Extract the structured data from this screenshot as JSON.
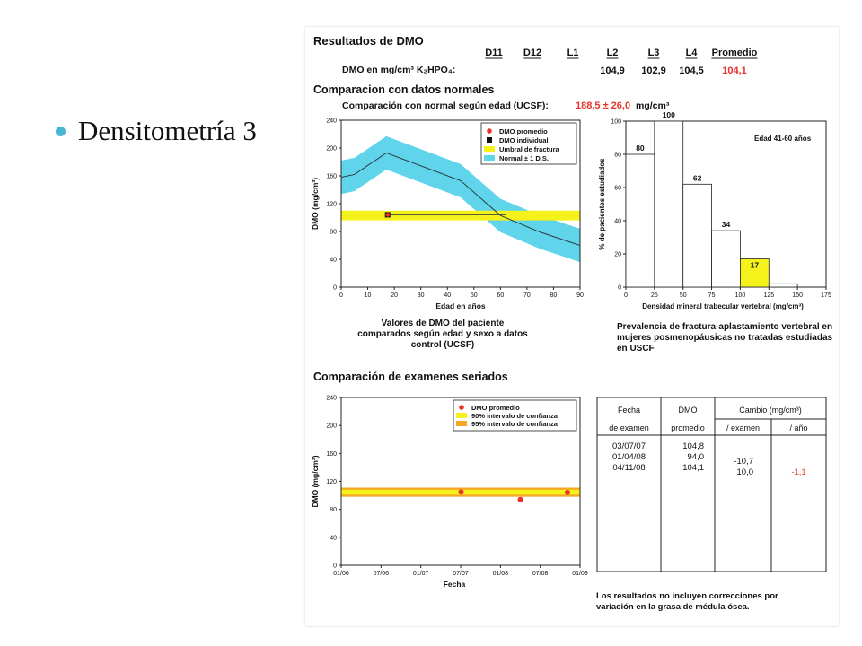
{
  "slide": {
    "title": "Densitometría 3"
  },
  "report": {
    "heading": "Resultados de DMO",
    "col_headers": [
      "D11",
      "D12",
      "L1",
      "L2",
      "L3",
      "L4",
      "Promedio"
    ],
    "dmo_label": "DMO en mg/cm³ K₂HPO₄:",
    "dmo_values": [
      "",
      "",
      "",
      "104,9",
      "102,9",
      "104,5",
      "104,1"
    ],
    "compare_heading": "Comparacion con datos normales",
    "ucsf_label": "Comparación con normal según edad (UCSF):",
    "ucsf_value": "188,5 ± 26,0",
    "ucsf_unit": "mg/cm³",
    "accent_color": "#e8322b"
  },
  "chart_data": [
    {
      "type": "line",
      "xlabel": "Edad en años",
      "ylabel": "DMO (mg/cm³)",
      "xlim": [
        0,
        90
      ],
      "ylim": [
        0,
        240
      ],
      "x_ticks": [
        "0",
        "10",
        "20",
        "30",
        "40",
        "50",
        "60",
        "70",
        "80",
        "90"
      ],
      "y_ticks": [
        "0",
        "40",
        "80",
        "120",
        "160",
        "200",
        "240"
      ],
      "legend": [
        "DMO promedio",
        "DMO individual",
        "Umbral de fractura",
        "Normal ± 1 D.S."
      ],
      "legend_placement": "top-right",
      "normal_mean": {
        "x": [
          0,
          5,
          17,
          45,
          60,
          75,
          90
        ],
        "y": [
          158,
          162,
          193,
          153,
          103,
          79,
          60
        ]
      },
      "normal_sd": 24,
      "fracture_threshold": {
        "y_low": 96,
        "y_high": 110
      },
      "patient_point": {
        "x": 17.5,
        "y": 104
      },
      "caption": "Valores de DMO del paciente comparados según edad y sexo a datos control (UCSF)"
    },
    {
      "type": "bar",
      "xlabel": "Densidad mineral trabecular vertebral (mg/cm³)",
      "ylabel": "% de pacientes estudiados",
      "annotation": "Edad 41-60 años",
      "x_ticks": [
        "0",
        "25",
        "50",
        "75",
        "100",
        "125",
        "150",
        "175"
      ],
      "y_ticks": [
        "0",
        "20",
        "40",
        "60",
        "80",
        "100"
      ],
      "bins": [
        [
          0,
          25
        ],
        [
          25,
          50
        ],
        [
          50,
          75
        ],
        [
          75,
          100
        ],
        [
          100,
          125
        ],
        [
          125,
          150
        ]
      ],
      "values": [
        80,
        100,
        62,
        34,
        17,
        2
      ],
      "value_labels": [
        "80",
        "100",
        "62",
        "34",
        "17",
        ""
      ],
      "highlight_bin": 4,
      "ylim": [
        0,
        100
      ],
      "caption": "Prevalencia de fractura-aplastamiento vertebral en mujeres posmenopáusicas no tratadas estudiadas en USCF"
    },
    {
      "type": "scatter",
      "heading": "Comparación de examenes seriados",
      "xlabel": "Fecha",
      "ylabel": "DMO (mg/cm³)",
      "x_ticks": [
        "01/06",
        "07/06",
        "01/07",
        "07/07",
        "01/08",
        "07/08",
        "01/09"
      ],
      "y_ticks": [
        "0",
        "40",
        "80",
        "120",
        "160",
        "200",
        "240"
      ],
      "ylim": [
        0,
        240
      ],
      "legend": [
        "DMO promedio",
        "90% intervalo de confianza",
        "95% intervalo de confianza"
      ],
      "legend_placement": "top-right",
      "band_95": [
        98,
        111
      ],
      "band_90": [
        101,
        108
      ],
      "points": [
        {
          "x": "03/07/07",
          "y": 104.8
        },
        {
          "x": "01/04/08",
          "y": 94.0
        },
        {
          "x": "04/11/08",
          "y": 104.1
        }
      ]
    }
  ],
  "table": {
    "headers": [
      "Fecha",
      "DMO",
      "Cambio (mg/cm³)"
    ],
    "subheaders": [
      "de examen",
      "promedio",
      "/ examen",
      "/ año"
    ],
    "rows": [
      {
        "fecha": "03/07/07",
        "dmo": "104,8",
        "cambio_examen": "",
        "cambio_ano": ""
      },
      {
        "fecha": "01/04/08",
        "dmo": "94,0",
        "cambio_examen": "-10,7",
        "cambio_ano": ""
      },
      {
        "fecha": "04/11/08",
        "dmo": "104,1",
        "cambio_examen": "10,0",
        "cambio_ano": "-1,1"
      }
    ]
  },
  "footnote": "Los resultados no incluyen correcciones por variación en la grasa de médula ósea."
}
